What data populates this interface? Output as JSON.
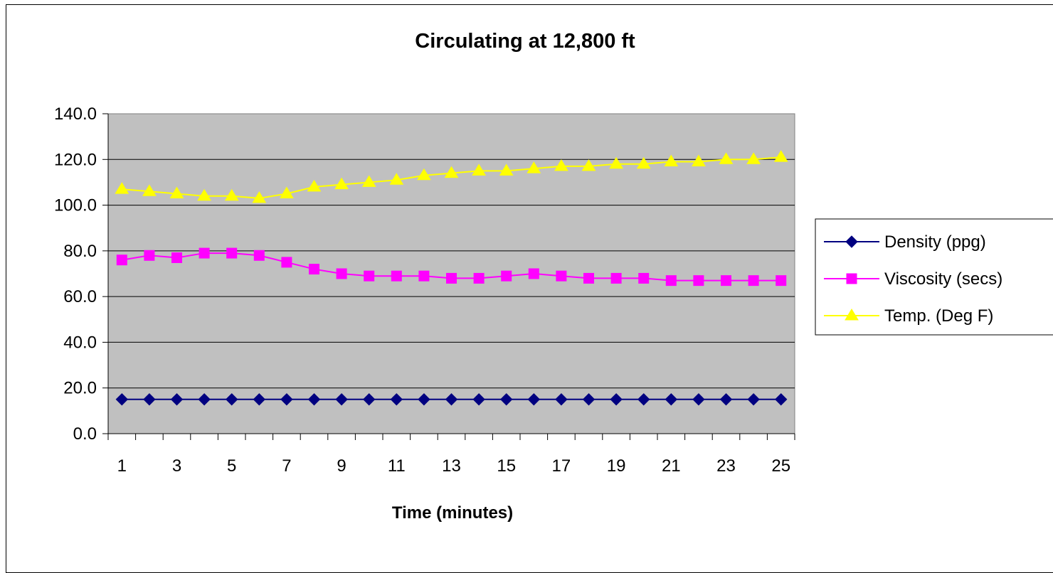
{
  "chart_data": {
    "type": "line",
    "title": "Circulating at 12,800 ft",
    "xlabel": "Time (minutes)",
    "ylabel": "",
    "x": [
      1,
      2,
      3,
      4,
      5,
      6,
      7,
      8,
      9,
      10,
      11,
      12,
      13,
      14,
      15,
      16,
      17,
      18,
      19,
      20,
      21,
      22,
      23,
      24,
      25
    ],
    "x_tick_labels": [
      "1",
      "3",
      "5",
      "7",
      "9",
      "11",
      "13",
      "15",
      "17",
      "19",
      "21",
      "23",
      "25"
    ],
    "ylim": [
      0,
      140
    ],
    "y_tick_labels": [
      "0.0",
      "20.0",
      "40.0",
      "60.0",
      "80.0",
      "100.0",
      "120.0",
      "140.0"
    ],
    "grid": "horizontal",
    "legend_position": "right",
    "plot_background": "#c0c0c0",
    "series": [
      {
        "name": "Density (ppg)",
        "color": "#000080",
        "marker": "diamond",
        "values": [
          15.0,
          15.0,
          15.0,
          15.0,
          15.0,
          15.0,
          15.0,
          15.0,
          15.0,
          15.0,
          15.0,
          15.0,
          15.0,
          15.0,
          15.0,
          15.0,
          15.0,
          15.0,
          15.0,
          15.0,
          15.0,
          15.0,
          15.0,
          15.0,
          15.0
        ]
      },
      {
        "name": "Viscosity (secs)",
        "color": "#ff00ff",
        "marker": "square",
        "values": [
          76,
          78,
          77,
          79,
          79,
          78,
          75,
          72,
          70,
          69,
          69,
          69,
          68,
          68,
          69,
          70,
          69,
          68,
          68,
          68,
          67,
          67,
          67,
          67,
          67
        ]
      },
      {
        "name": "Temp. (Deg F)",
        "color": "#ffff00",
        "marker": "triangle",
        "values": [
          107,
          106,
          105,
          104,
          104,
          103,
          105,
          108,
          109,
          110,
          111,
          113,
          114,
          115,
          115,
          116,
          117,
          117,
          118,
          118,
          119,
          119,
          120,
          120,
          121
        ]
      }
    ]
  }
}
